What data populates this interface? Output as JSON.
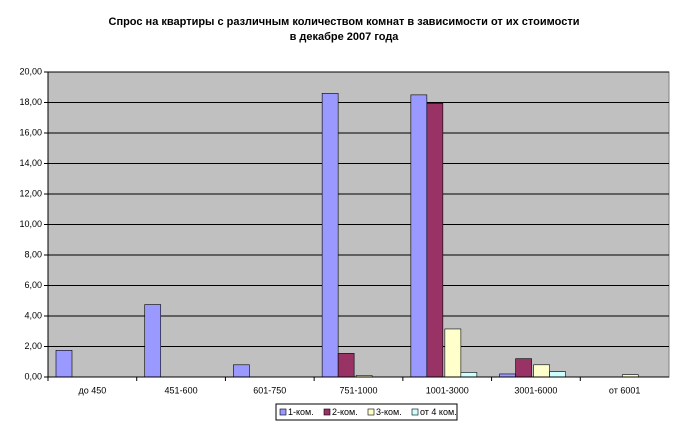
{
  "chart_data": {
    "type": "bar",
    "title": [
      "Спрос на квартиры с различным количеством комнат в зависимости от их стоимости",
      "в декабре 2007 года"
    ],
    "categories": [
      "до 450",
      "451-600",
      "601-750",
      "751-1000",
      "1001-3000",
      "3001-6000",
      "от 6001"
    ],
    "series": [
      {
        "name": "1-ком.",
        "color": "#9999ff",
        "values": [
          1.75,
          4.75,
          0.8,
          18.6,
          18.5,
          0.2,
          0
        ]
      },
      {
        "name": "2-ком.",
        "color": "#993366",
        "values": [
          0,
          0,
          0,
          1.55,
          17.95,
          1.2,
          0
        ]
      },
      {
        "name": "3-ком.",
        "color": "#ffffcc",
        "values": [
          0,
          0,
          0,
          0.1,
          3.15,
          0.8,
          0.15
        ]
      },
      {
        "name": "от 4 ком.",
        "color": "#ccffff",
        "values": [
          0,
          0,
          0,
          0,
          0.3,
          0.35,
          0
        ]
      }
    ],
    "ylim": [
      0,
      20
    ],
    "yticks": [
      {
        "value": 0,
        "label": "0,00"
      },
      {
        "value": 2,
        "label": "2,00"
      },
      {
        "value": 4,
        "label": "4,00"
      },
      {
        "value": 6,
        "label": "6,00"
      },
      {
        "value": 8,
        "label": "8,00"
      },
      {
        "value": 10,
        "label": "10,00"
      },
      {
        "value": 12,
        "label": "12,00"
      },
      {
        "value": 14,
        "label": "14,00"
      },
      {
        "value": 16,
        "label": "16,00"
      },
      {
        "value": 18,
        "label": "18,00"
      },
      {
        "value": 20,
        "label": "20,00"
      }
    ],
    "grid": true,
    "legend": "bottom",
    "plot_background": "#c0c0c0"
  }
}
